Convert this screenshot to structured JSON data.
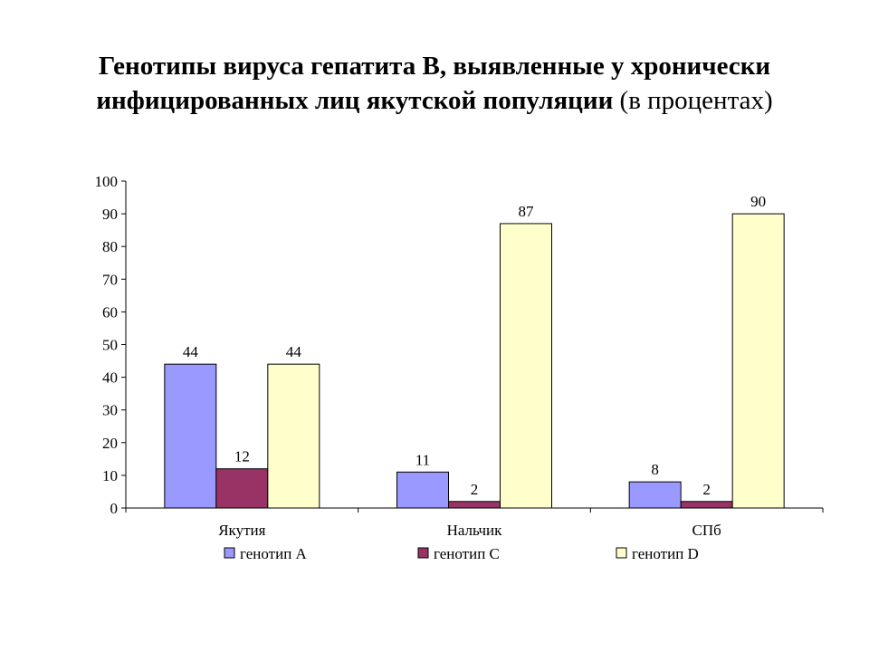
{
  "title": {
    "line1": "Генотипы вируса гепатита В, выявленные у хронически",
    "line2_bold": "инфицированных лиц якутской популяции",
    "line2_normal": " (в процентах)"
  },
  "chart_data": {
    "type": "bar",
    "categories": [
      "Якутия",
      "Нальчик",
      "СПб"
    ],
    "series": [
      {
        "name": "генотип А",
        "values": [
          44,
          11,
          8
        ],
        "color": "#9999ff"
      },
      {
        "name": "генотип С",
        "values": [
          12,
          2,
          2
        ],
        "color": "#993366"
      },
      {
        "name": "генотип D",
        "values": [
          44,
          87,
          90
        ],
        "color": "#ffffcc"
      }
    ],
    "ylim": [
      0,
      100
    ],
    "yticks": [
      0,
      10,
      20,
      30,
      40,
      50,
      60,
      70,
      80,
      90,
      100
    ],
    "grid": false,
    "data_labels": true,
    "legend_position": "bottom"
  }
}
